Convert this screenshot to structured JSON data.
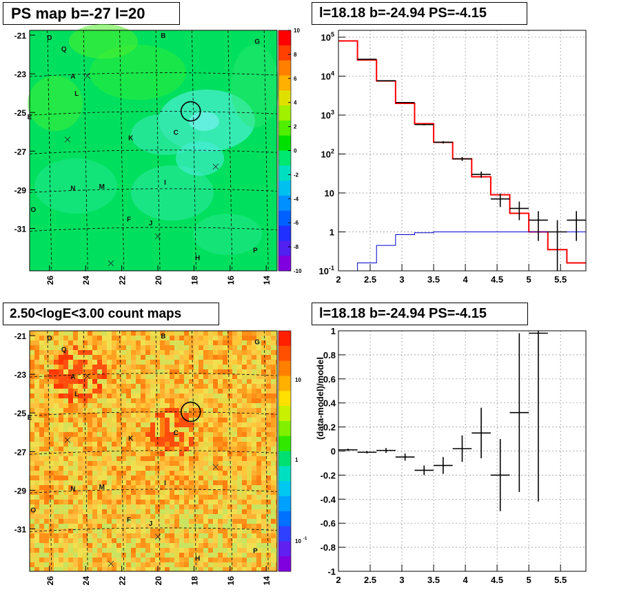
{
  "titles": {
    "top_left": "PS map b=-27 l=20",
    "top_right": "l=18.18 b=-24.94 PS=-4.15",
    "bottom_left": "2.50<logE<3.00 count maps",
    "bottom_right": "l=18.18 b=-24.94 PS=-4.15"
  },
  "maps": {
    "y_ticks": [
      "-21",
      "-23",
      "-25",
      "-27",
      "-29",
      "-31"
    ],
    "x_ticks": [
      "26",
      "24",
      "22",
      "20",
      "18",
      "16",
      "14"
    ],
    "sources": [
      {
        "label": "D",
        "l": 26.0,
        "b": -21.1
      },
      {
        "label": "B",
        "l": 19.7,
        "b": -21.0
      },
      {
        "label": "G",
        "l": 14.5,
        "b": -21.3
      },
      {
        "label": "Q",
        "l": 25.2,
        "b": -21.7
      },
      {
        "label": "A",
        "l": 24.7,
        "b": -23.1
      },
      {
        "label": "L",
        "l": 24.5,
        "b": -24.0
      },
      {
        "label": "E",
        "l": 27.1,
        "b": -25.2
      },
      {
        "label": "C",
        "l": 19.0,
        "b": -26.0
      },
      {
        "label": "K",
        "l": 21.5,
        "b": -26.3
      },
      {
        "label": "I",
        "l": 19.6,
        "b": -28.6
      },
      {
        "label": "M",
        "l": 23.1,
        "b": -28.8
      },
      {
        "label": "N",
        "l": 24.7,
        "b": -28.9
      },
      {
        "label": "O",
        "l": 26.9,
        "b": -30.0
      },
      {
        "label": "F",
        "l": 21.6,
        "b": -30.5
      },
      {
        "label": "J",
        "l": 20.4,
        "b": -30.7
      },
      {
        "label": "P",
        "l": 14.6,
        "b": -32.1
      },
      {
        "label": "H",
        "l": 17.8,
        "b": -32.5
      }
    ],
    "crosses": [
      {
        "l": 23.9,
        "b": -23.1
      },
      {
        "l": 25.0,
        "b": -26.4
      },
      {
        "l": 16.8,
        "b": -27.8
      },
      {
        "l": 20.0,
        "b": -31.4
      },
      {
        "l": 22.6,
        "b": -32.8
      }
    ],
    "circle_target": {
      "l": 18.18,
      "b": -24.94
    },
    "ps_colorbar_ticks": [
      "10",
      "8",
      "6",
      "4",
      "2",
      "0",
      "-2",
      "-4",
      "-6",
      "-8",
      "-10"
    ],
    "count_colorbar_ticks": [
      "10",
      "1",
      "10",
      "-1"
    ]
  },
  "chart_data": [
    {
      "type": "line",
      "title": "l=18.18 b=-24.94 PS=-4.15",
      "xlabel": "",
      "ylabel": "",
      "xlim": [
        2,
        5.9
      ],
      "ylim": [
        0.1,
        150000
      ],
      "yscale": "log",
      "grid": true,
      "x_ticks": [
        "2",
        "2.5",
        "3",
        "3.5",
        "4",
        "4.5",
        "5",
        "5.5"
      ],
      "y_ticks": [
        "10^-1",
        "1",
        "10",
        "10^2",
        "10^3",
        "10^4",
        "10^5"
      ],
      "bin_edges": [
        2.0,
        2.3,
        2.6,
        2.9,
        3.2,
        3.5,
        3.8,
        4.1,
        4.4,
        4.7,
        5.0,
        5.3,
        5.6,
        5.9
      ],
      "series": [
        {
          "color": "#ff0000",
          "style": "step",
          "values": [
            80000,
            26000,
            7500,
            2000,
            600,
            200,
            75,
            26,
            9,
            3,
            1,
            0.35,
            0.16
          ]
        },
        {
          "color": "#0000cc",
          "style": "step",
          "values": [
            0.1,
            0.16,
            0.45,
            0.85,
            0.95,
            1.0,
            1.0,
            1.0,
            1.0,
            1.0,
            1.0,
            1.0,
            1.0
          ]
        },
        {
          "color": "#000000",
          "style": "errorbars",
          "values": [
            null,
            27000,
            7600,
            2100,
            570,
            200,
            75,
            30,
            7,
            4,
            2,
            1,
            2
          ]
        }
      ]
    },
    {
      "type": "scatter",
      "title": "l=18.18 b=-24.94 PS=-4.15",
      "xlabel": "",
      "ylabel": "(data-model)/model",
      "xlim": [
        2,
        5.9
      ],
      "ylim": [
        -1,
        1
      ],
      "grid": true,
      "x_ticks": [
        "2",
        "2.5",
        "3",
        "3.5",
        "4",
        "4.5",
        "5",
        "5.5"
      ],
      "y_ticks": [
        "1",
        "0.8",
        "0.6",
        "0.4",
        "0.2",
        "0",
        "-0.2",
        "-0.4",
        "-0.6",
        "-0.8",
        "-1"
      ],
      "points": [
        {
          "x": 2.15,
          "y": 0.01,
          "xerr": 0.15,
          "yerr": 0.01
        },
        {
          "x": 2.45,
          "y": -0.01,
          "xerr": 0.15,
          "yerr": 0.01
        },
        {
          "x": 2.75,
          "y": 0.005,
          "xerr": 0.15,
          "yerr": 0.02
        },
        {
          "x": 3.05,
          "y": -0.05,
          "xerr": 0.15,
          "yerr": 0.03
        },
        {
          "x": 3.35,
          "y": -0.16,
          "xerr": 0.15,
          "yerr": 0.04
        },
        {
          "x": 3.65,
          "y": -0.12,
          "xerr": 0.15,
          "yerr": 0.07
        },
        {
          "x": 3.95,
          "y": 0.02,
          "xerr": 0.15,
          "yerr": 0.11
        },
        {
          "x": 4.25,
          "y": 0.15,
          "xerr": 0.15,
          "yerr": 0.21
        },
        {
          "x": 4.55,
          "y": -0.2,
          "xerr": 0.15,
          "yerr": 0.3
        },
        {
          "x": 4.85,
          "y": 0.32,
          "xerr": 0.15,
          "yerr": 0.66
        },
        {
          "x": 5.15,
          "y": 0.98,
          "xerr": 0.15,
          "yerr": 1.4
        }
      ]
    }
  ]
}
